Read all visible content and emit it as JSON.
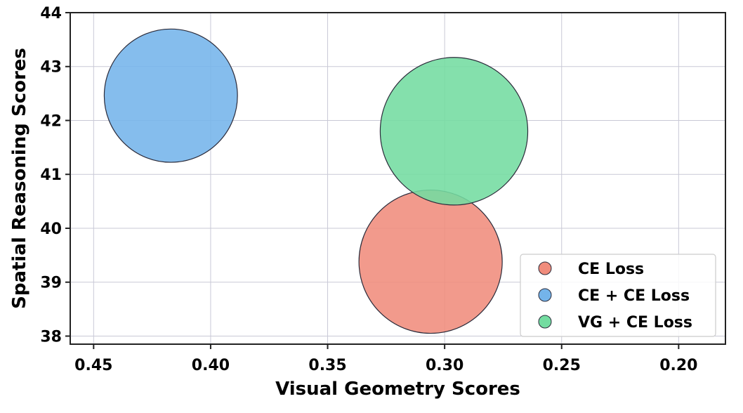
{
  "chart_data": {
    "type": "scatter",
    "xlabel": "Visual Geometry Scores",
    "ylabel": "Spatial Reasoning Scores",
    "x_reversed": true,
    "xlim": [
      0.46,
      0.18
    ],
    "ylim": [
      37.85,
      44.0
    ],
    "xticks": [
      0.45,
      0.4,
      0.35,
      0.3,
      0.25,
      0.2
    ],
    "xtick_labels": [
      "0.45",
      "0.40",
      "0.35",
      "0.30",
      "0.25",
      "0.20"
    ],
    "yticks": [
      38,
      39,
      40,
      41,
      42,
      43,
      44
    ],
    "ytick_labels": [
      "38",
      "39",
      "40",
      "41",
      "42",
      "43",
      "44"
    ],
    "grid": true,
    "legend_position": "bottom-right",
    "series": [
      {
        "name": "CE Loss",
        "x": 0.306,
        "y": 39.38,
        "color": "#f08c7c",
        "point_relative_size": 1.0
      },
      {
        "name": "CE + CE Loss",
        "x": 0.417,
        "y": 42.46,
        "color": "#74b4ea",
        "point_relative_size": 0.93
      },
      {
        "name": "VG + CE Loss",
        "x": 0.296,
        "y": 41.8,
        "color": "#73dca0",
        "point_relative_size": 1.03
      }
    ]
  }
}
